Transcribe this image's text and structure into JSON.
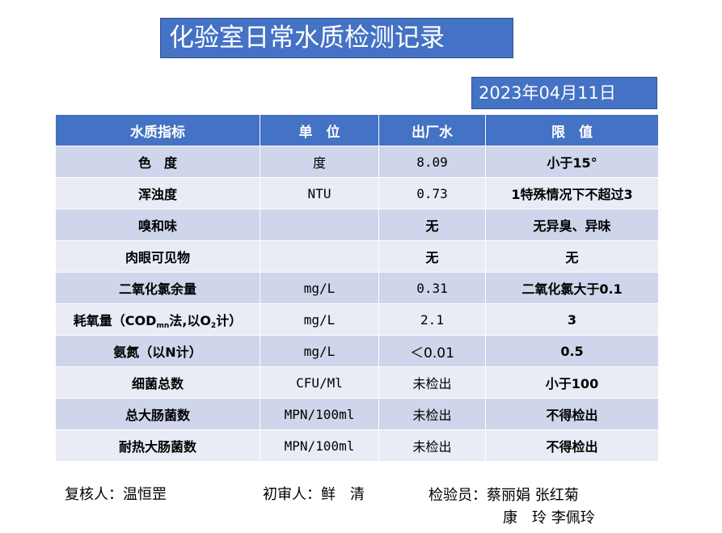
{
  "title": "化验室日常水质检测记录",
  "date": "2023年04月11日",
  "table": {
    "headers": [
      "水质指标",
      "单　位",
      "出厂水",
      "限　值"
    ],
    "rows": [
      {
        "name": "色　度",
        "unit": "度",
        "outlet": "8.09",
        "limit": "小于15°"
      },
      {
        "name": "浑浊度",
        "unit": "NTU",
        "outlet": "0.73",
        "limit": "1特殊情况下不超过3"
      },
      {
        "name": "嗅和味",
        "unit": "",
        "outlet": "无",
        "limit": "无异臭、异味"
      },
      {
        "name": "肉眼可见物",
        "unit": "",
        "outlet": "无",
        "limit": "无"
      },
      {
        "name": "二氧化氯余量",
        "unit": "mg/L",
        "outlet": "0.31",
        "limit": "二氧化氯大于0.1"
      },
      {
        "name_parts": {
          "a": "耗氧量（COD",
          "sub1": "mn",
          "b": "法,以O",
          "sub2": "2",
          "c": "计）"
        },
        "unit": "mg/L",
        "outlet": "2.1",
        "limit": "3"
      },
      {
        "name": "氨氮（以N计）",
        "unit": "mg/L",
        "outlet": "＜0.01",
        "limit": "0.5"
      },
      {
        "name": "细菌总数",
        "unit": "CFU/Ml",
        "outlet": "未检出",
        "limit": "小于100"
      },
      {
        "name": "总大肠菌数",
        "unit": "MPN/100ml",
        "outlet": "未检出",
        "limit": "不得检出"
      },
      {
        "name": "耐热大肠菌数",
        "unit": "MPN/100ml",
        "outlet": "未检出",
        "limit": "不得检出"
      }
    ]
  },
  "footer": {
    "reviewer": "复核人：温恒罡",
    "first_reviewer": "初审人：鲜　清",
    "inspector_line1": "检验员：蔡丽娟 张红菊",
    "inspector_line2": "康　玲 李佩玲"
  }
}
